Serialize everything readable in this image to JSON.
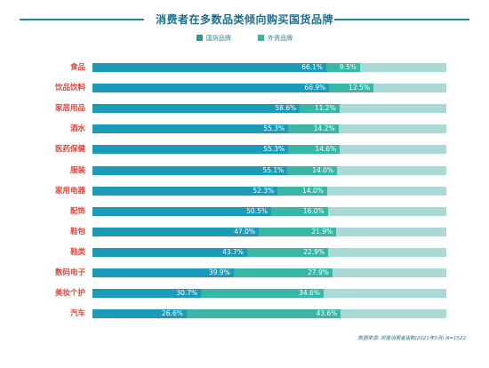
{
  "chart_data": {
    "type": "bar",
    "title": "消费者在多数品类倾向购买国货品牌",
    "legend": [
      "国货品牌",
      "外资品牌"
    ],
    "categories": [
      "食品",
      "饮品饮料",
      "家居用品",
      "酒水",
      "医药保健",
      "服装",
      "家用电器",
      "配饰",
      "鞋包",
      "鞋类",
      "数码电子",
      "美妆个护",
      "汽车"
    ],
    "series": [
      {
        "name": "国货品牌",
        "values": [
          66.1,
          66.9,
          58.6,
          55.3,
          55.3,
          55.1,
          52.3,
          50.5,
          47.0,
          43.7,
          39.9,
          30.7,
          26.6
        ],
        "labels": [
          "66.1%",
          "66.9%",
          "58.6%",
          "55.3%",
          "55.3%",
          "55.1%",
          "52.3%",
          "50.5%",
          "47.0%",
          "43.7%",
          "39.9%",
          "30.7%",
          "26.6%"
        ]
      },
      {
        "name": "外资品牌",
        "values": [
          9.5,
          12.5,
          11.2,
          14.2,
          14.6,
          14.0,
          14.0,
          16.0,
          21.9,
          22.9,
          27.9,
          34.6,
          43.6
        ],
        "labels": [
          "9.5%",
          "12.5%",
          "11.2%",
          "14.2%",
          "14.6%",
          "14.0%",
          "14.0%",
          "16.0%",
          "21.9%",
          "22.9%",
          "27.9%",
          "34.6%",
          "43.6%"
        ]
      }
    ],
    "xlim": [
      0,
      100
    ],
    "colors": {
      "domestic": "#1b9bb8",
      "foreign": "#39b7a6",
      "rest": "#a9dad8",
      "title": "#1c6f8c",
      "category": "#e0433d"
    },
    "source": "数据来源: 凯度消费者指数(2021年3月) N=1522"
  }
}
